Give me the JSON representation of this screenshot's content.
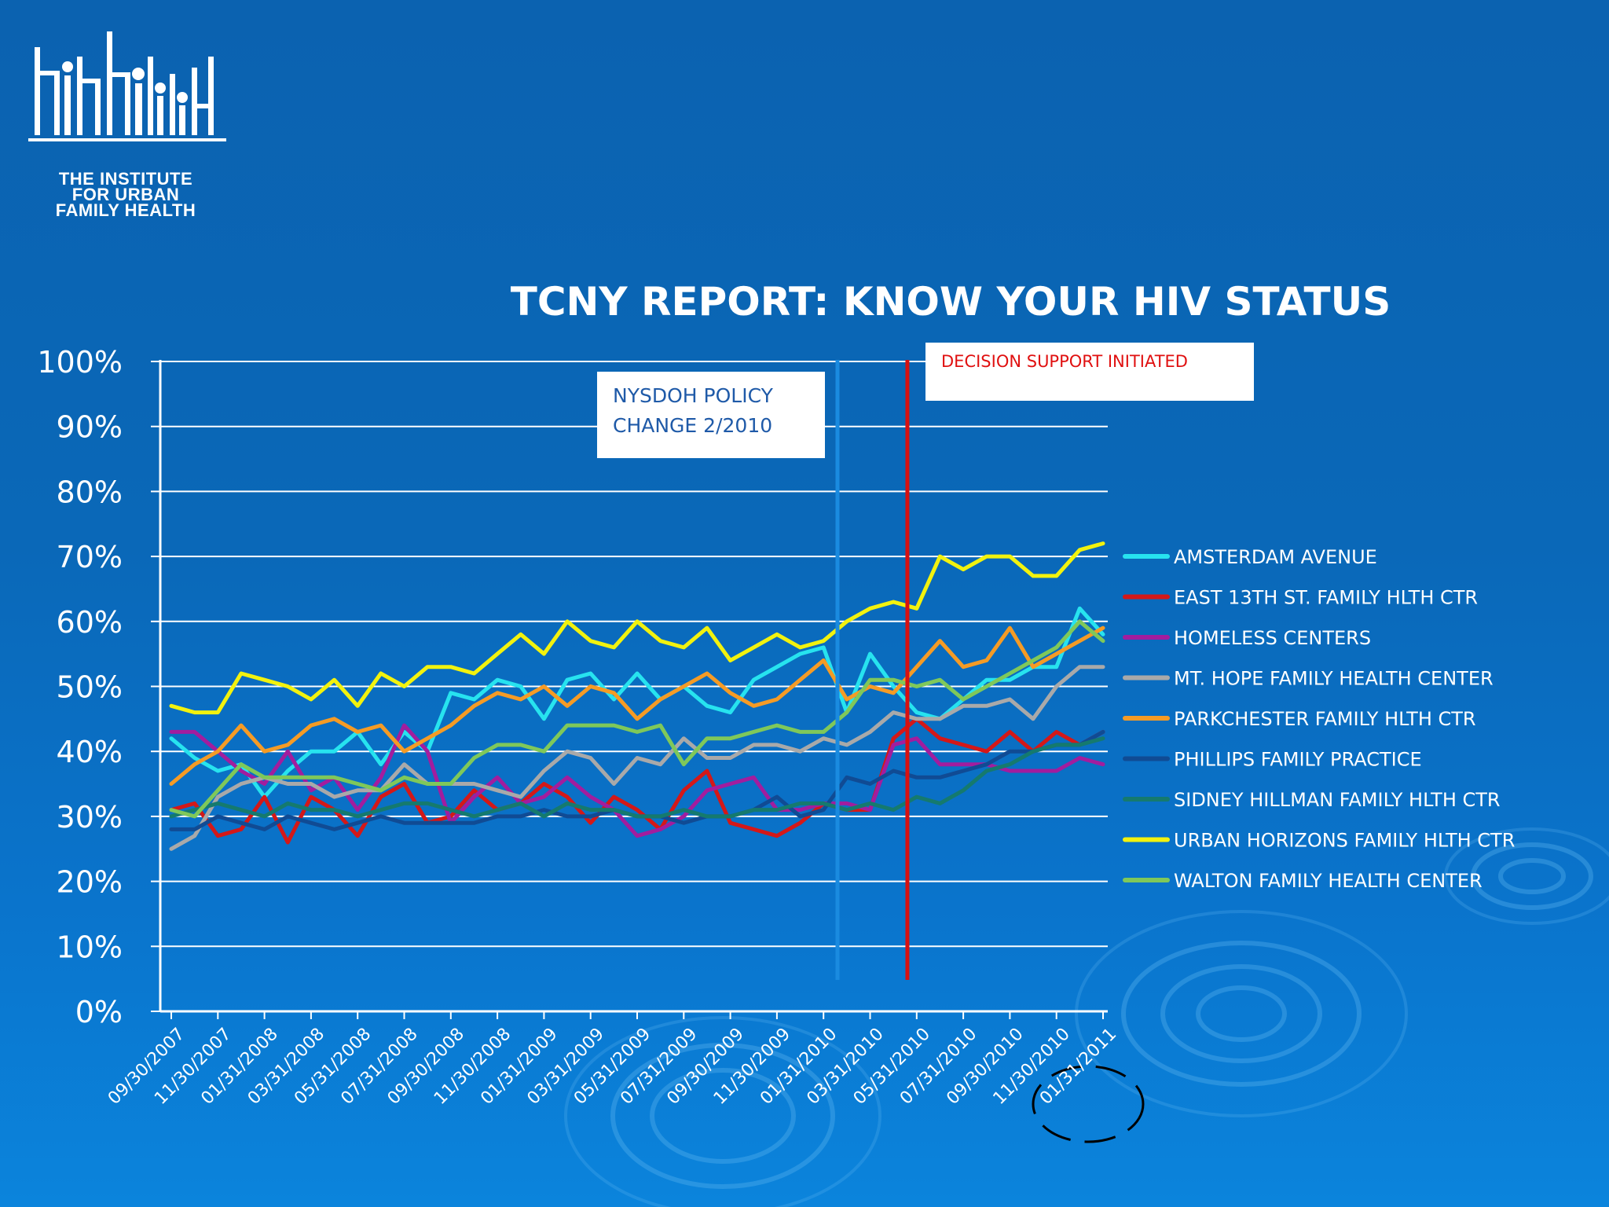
{
  "logo": {
    "name": "hiv-institute-logo",
    "text_lines": [
      "THE INSTITUTE",
      "FOR URBAN",
      "FAMILY HEALTH"
    ]
  },
  "annotations": {
    "policy_change": [
      "NYSDOH POLICY",
      "CHANGE 2/2010"
    ],
    "decision_support": "DECISION SUPPORT INITIATED"
  },
  "colors": {
    "background": "#0a68b8",
    "policy_line": "#1a8be0",
    "decision_line": "#d81010"
  },
  "chart_data": {
    "type": "line",
    "title": "TCNY REPORT: KNOW YOUR HIV STATUS",
    "xlabel": "",
    "ylabel": "",
    "ylim": [
      0,
      100
    ],
    "yticks": [
      "0%",
      "10%",
      "20%",
      "30%",
      "40%",
      "50%",
      "60%",
      "70%",
      "80%",
      "90%",
      "100%"
    ],
    "tick_labels": [
      "09/30/2007",
      "11/30/2007",
      "01/31/2008",
      "03/31/2008",
      "05/31/2008",
      "07/31/2008",
      "09/30/2008",
      "11/30/2008",
      "01/31/2009",
      "03/31/2009",
      "05/31/2009",
      "07/31/2009",
      "09/30/2009",
      "11/30/2009",
      "01/31/2010",
      "03/31/2010",
      "05/31/2010",
      "07/31/2010",
      "09/30/2010",
      "11/30/2010",
      "01/31/2011"
    ],
    "x_first": "2007-09-30",
    "x_last": "2011-01-31",
    "points_per_series": 41,
    "grid": true,
    "legend_position": "right",
    "vertical_markers": [
      {
        "label": "NYSDOH POLICY CHANGE 2/2010",
        "month": "2010-02",
        "color": "#1a8be0"
      },
      {
        "label": "DECISION SUPPORT INITIATED",
        "month": "2010-05",
        "color": "#d81010"
      }
    ],
    "series": [
      {
        "name": "AMSTERDAM AVENUE",
        "color": "#27e3ef",
        "values": [
          42,
          39,
          37,
          38,
          33,
          37,
          40,
          40,
          43,
          38,
          43,
          40,
          49,
          48,
          51,
          50,
          45,
          51,
          52,
          48,
          52,
          48,
          50,
          47,
          46,
          51,
          53,
          55,
          56,
          46,
          55,
          50,
          46,
          45,
          48,
          51,
          51,
          53,
          53,
          62,
          58
        ]
      },
      {
        "name": "EAST 13TH ST. FAMILY HLTH CTR",
        "color": "#d41818",
        "values": [
          31,
          32,
          27,
          28,
          33,
          26,
          33,
          31,
          27,
          33,
          35,
          29,
          30,
          34,
          31,
          32,
          35,
          33,
          29,
          33,
          31,
          28,
          34,
          37,
          29,
          28,
          27,
          29,
          32,
          31,
          31,
          42,
          45,
          42,
          41,
          40,
          43,
          40,
          43,
          41,
          43
        ]
      },
      {
        "name": "HOMELESS CENTERS",
        "color": "#a21d9e",
        "values": [
          43,
          43,
          40,
          37,
          35,
          40,
          34,
          36,
          31,
          36,
          44,
          40,
          29,
          33,
          36,
          32,
          33,
          36,
          33,
          31,
          27,
          28,
          30,
          34,
          35,
          36,
          31,
          31,
          32,
          32,
          31,
          41,
          42,
          38,
          38,
          38,
          37,
          37,
          37,
          39,
          38
        ]
      },
      {
        "name": "MT. HOPE FAMILY HEALTH CENTER",
        "color": "#a9a9a9",
        "values": [
          25,
          27,
          33,
          35,
          36,
          35,
          35,
          33,
          34,
          34,
          38,
          35,
          35,
          35,
          34,
          33,
          37,
          40,
          39,
          35,
          39,
          38,
          42,
          39,
          39,
          41,
          41,
          40,
          42,
          41,
          43,
          46,
          45,
          45,
          47,
          47,
          48,
          45,
          50,
          53,
          53
        ]
      },
      {
        "name": "PARKCHESTER FAMILY HLTH CTR",
        "color": "#f59b25",
        "values": [
          35,
          38,
          40,
          44,
          40,
          41,
          44,
          45,
          43,
          44,
          40,
          42,
          44,
          47,
          49,
          48,
          50,
          47,
          50,
          49,
          45,
          48,
          50,
          52,
          49,
          47,
          48,
          51,
          54,
          48,
          50,
          49,
          53,
          57,
          53,
          54,
          59,
          53,
          55,
          57,
          59
        ]
      },
      {
        "name": "PHILLIPS FAMILY PRACTICE",
        "color": "#104b94",
        "values": [
          28,
          28,
          30,
          29,
          28,
          30,
          29,
          28,
          29,
          30,
          29,
          29,
          29,
          29,
          30,
          30,
          31,
          30,
          30,
          31,
          30,
          30,
          29,
          30,
          30,
          31,
          33,
          30,
          31,
          36,
          35,
          37,
          36,
          36,
          37,
          38,
          40,
          40,
          41,
          41,
          43
        ]
      },
      {
        "name": "SIDNEY HILLMAN FAMILY HLTH CTR",
        "color": "#157a6e",
        "values": [
          30,
          31,
          32,
          31,
          30,
          32,
          31,
          31,
          30,
          31,
          32,
          32,
          31,
          30,
          31,
          32,
          30,
          32,
          31,
          31,
          30,
          30,
          31,
          30,
          30,
          31,
          31,
          32,
          32,
          31,
          32,
          31,
          33,
          32,
          34,
          37,
          38,
          40,
          41,
          41,
          42
        ]
      },
      {
        "name": "URBAN HORIZONS FAMILY HLTH CTR",
        "color": "#f2f20e",
        "values": [
          47,
          46,
          46,
          52,
          51,
          50,
          48,
          51,
          47,
          52,
          50,
          53,
          53,
          52,
          55,
          58,
          55,
          60,
          57,
          56,
          60,
          57,
          56,
          59,
          54,
          56,
          58,
          56,
          57,
          60,
          62,
          63,
          62,
          70,
          68,
          70,
          70,
          67,
          67,
          71,
          72
        ]
      },
      {
        "name": "WALTON FAMILY HEALTH CENTER",
        "color": "#7fc85a",
        "values": [
          31,
          30,
          34,
          38,
          36,
          36,
          36,
          36,
          35,
          34,
          36,
          35,
          35,
          39,
          41,
          41,
          40,
          44,
          44,
          44,
          43,
          44,
          38,
          42,
          42,
          43,
          44,
          43,
          43,
          46,
          51,
          51,
          50,
          51,
          48,
          50,
          52,
          54,
          56,
          60,
          57
        ]
      }
    ]
  }
}
